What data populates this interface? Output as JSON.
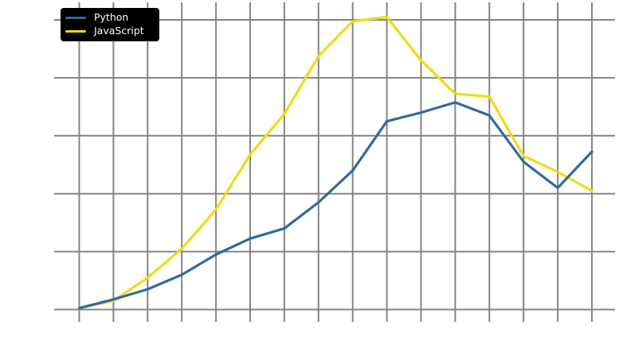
{
  "app": {
    "background_color": "#ffffff"
  },
  "legend": {
    "background_color": "#000000",
    "text_color": "#ffffff",
    "items": [
      {
        "label": "Python",
        "color": "#2F6B9D"
      },
      {
        "label": "JavaScript",
        "color": "#F3D916"
      }
    ]
  },
  "chart_data": {
    "type": "line",
    "title": "",
    "xlabel": "",
    "ylabel": "",
    "x_point_count": 16,
    "x_tick_labels_visible": false,
    "y_tick_labels_visible": false,
    "y_ticks": [
      0,
      20,
      40,
      60,
      80,
      100
    ],
    "ylim": [
      -5,
      106
    ],
    "grid": {
      "visible": true,
      "color": "#848484"
    },
    "legend_position": "upper-left",
    "series": [
      {
        "name": "Python",
        "color": "#2F6B9D",
        "values": [
          0.5,
          3.5,
          7,
          12,
          19,
          24.5,
          28,
          37,
          48,
          65,
          68,
          71.5,
          67,
          51,
          42,
          54.5
        ]
      },
      {
        "name": "JavaScript",
        "color": "#F3D916",
        "values": [
          0.5,
          3,
          11,
          21,
          34.5,
          53.5,
          67.5,
          87.5,
          99.5,
          101,
          86,
          74.5,
          73.5,
          53,
          47.5,
          41
        ]
      }
    ]
  }
}
